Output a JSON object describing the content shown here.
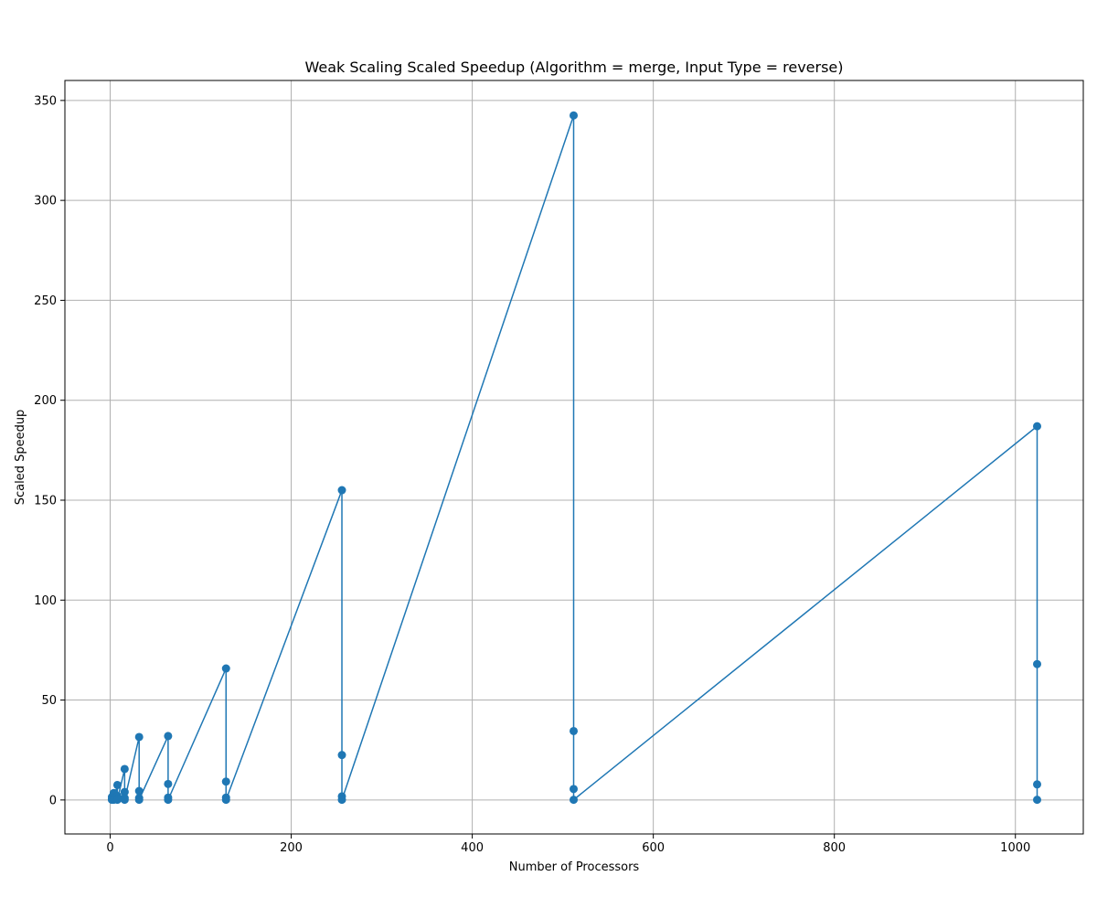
{
  "chart_data": {
    "type": "line",
    "title": "Weak Scaling Scaled Speedup (Algorithm = merge, Input Type = reverse)",
    "xlabel": "Number of Processors",
    "ylabel": "Scaled Speedup",
    "xlim": [
      -50,
      1075
    ],
    "ylim": [
      -17,
      360
    ],
    "xticks": [
      0,
      200,
      400,
      600,
      800,
      1000
    ],
    "yticks": [
      0,
      50,
      100,
      150,
      200,
      250,
      300,
      350
    ],
    "grid": true,
    "marker": "circle",
    "series": [
      {
        "color": "#1f77b4",
        "points": [
          [
            2,
            1.5
          ],
          [
            2,
            0.5
          ],
          [
            2,
            0.2
          ],
          [
            2,
            0.1
          ],
          [
            4,
            3.5
          ],
          [
            4,
            1.0
          ],
          [
            4,
            0.3
          ],
          [
            4,
            0.1
          ],
          [
            8,
            7.5
          ],
          [
            8,
            2.0
          ],
          [
            8,
            0.5
          ],
          [
            8,
            0.1
          ],
          [
            16,
            15.5
          ],
          [
            16,
            4.0
          ],
          [
            16,
            1.0
          ],
          [
            16,
            0.1
          ],
          [
            32,
            31.5
          ],
          [
            32,
            4.5
          ],
          [
            32,
            1.0
          ],
          [
            32,
            0.1
          ],
          [
            64,
            32.0
          ],
          [
            64,
            8.0
          ],
          [
            64,
            1.2
          ],
          [
            64,
            0.1
          ],
          [
            128,
            65.8
          ],
          [
            128,
            9.2
          ],
          [
            128,
            1.2
          ],
          [
            128,
            0.1
          ],
          [
            256,
            155.0
          ],
          [
            256,
            22.5
          ],
          [
            256,
            1.8
          ],
          [
            256,
            0.1
          ],
          [
            512,
            342.5
          ],
          [
            512,
            34.5
          ],
          [
            512,
            5.5
          ],
          [
            512,
            0.1
          ],
          [
            1024,
            187.0
          ],
          [
            1024,
            68.0
          ],
          [
            1024,
            7.8
          ],
          [
            1024,
            0.1
          ]
        ]
      }
    ]
  }
}
